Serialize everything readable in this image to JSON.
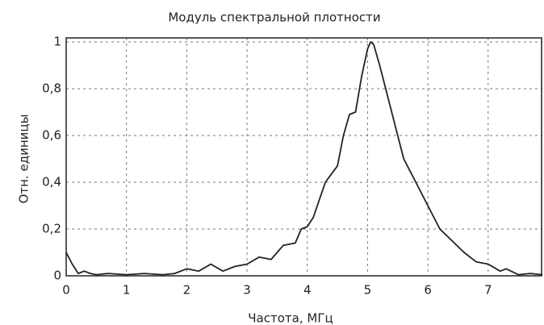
{
  "chart_data": {
    "type": "line",
    "title": "Модуль спектральной плотности",
    "x_label": "Частота, МГц",
    "y_label": "Отн. единицы",
    "xlim": [
      0,
      7.9
    ],
    "ylim": [
      0,
      1
    ],
    "xticks": [
      0,
      1,
      2,
      3,
      4,
      5,
      6,
      7
    ],
    "yticks": [
      0,
      {
        "value": 0.2,
        "label": "0,2"
      },
      {
        "value": 0.4,
        "label": "0,4"
      },
      {
        "value": 0.6,
        "label": "0,6"
      },
      {
        "value": 0.8,
        "label": "0,8"
      },
      1
    ],
    "grid": true,
    "x": [
      0,
      0.1,
      0.2,
      0.3,
      0.4,
      0.5,
      0.7,
      1.0,
      1.3,
      1.6,
      1.8,
      2.0,
      2.2,
      2.4,
      2.6,
      2.8,
      3.0,
      3.2,
      3.4,
      3.5,
      3.6,
      3.8,
      3.9,
      4.0,
      4.1,
      4.3,
      4.5,
      4.6,
      4.7,
      4.8,
      4.9,
      5.0,
      5.05,
      5.1,
      5.2,
      5.4,
      5.6,
      5.8,
      6.0,
      6.2,
      6.4,
      6.6,
      6.8,
      7.0,
      7.2,
      7.3,
      7.5,
      7.7,
      7.9
    ],
    "series": [
      {
        "color": "#222222",
        "values": [
          0.1,
          0.05,
          0.01,
          0.02,
          0.01,
          0.005,
          0.01,
          0.005,
          0.01,
          0.005,
          0.01,
          0.03,
          0.02,
          0.05,
          0.02,
          0.04,
          0.05,
          0.08,
          0.07,
          0.1,
          0.13,
          0.14,
          0.2,
          0.21,
          0.25,
          0.4,
          0.47,
          0.6,
          0.69,
          0.7,
          0.85,
          0.97,
          1.0,
          0.99,
          0.9,
          0.7,
          0.5,
          0.4,
          0.3,
          0.2,
          0.15,
          0.1,
          0.06,
          0.05,
          0.02,
          0.03,
          0.005,
          0.01,
          0.005
        ]
      }
    ]
  }
}
